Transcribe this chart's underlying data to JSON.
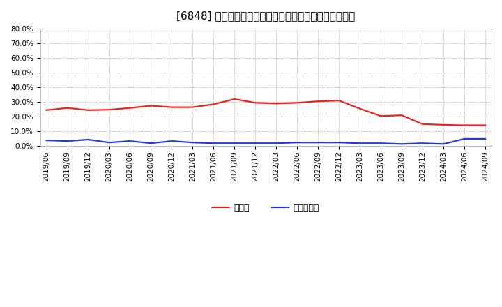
{
  "title": "[6848] 現顔金、有利子負債の総資産に対する比率の推移",
  "x_labels": [
    "2019/06",
    "2019/09",
    "2019/12",
    "2020/03",
    "2020/06",
    "2020/09",
    "2020/12",
    "2021/03",
    "2021/06",
    "2021/09",
    "2021/12",
    "2022/03",
    "2022/06",
    "2022/09",
    "2022/12",
    "2023/03",
    "2023/06",
    "2023/09",
    "2023/12",
    "2024/03",
    "2024/06",
    "2024/09"
  ],
  "cash_values": [
    24.5,
    26.0,
    24.5,
    24.8,
    26.0,
    27.5,
    26.5,
    26.5,
    28.5,
    32.0,
    29.5,
    29.0,
    29.5,
    30.5,
    31.0,
    25.5,
    20.5,
    21.0,
    15.0,
    14.5,
    14.2,
    14.2
  ],
  "debt_values": [
    4.0,
    3.5,
    4.5,
    2.5,
    3.5,
    2.0,
    3.5,
    2.5,
    2.0,
    2.0,
    2.0,
    2.0,
    2.5,
    2.5,
    2.5,
    2.0,
    2.0,
    1.5,
    2.0,
    1.5,
    5.0,
    5.0
  ],
  "cash_color": "#e82520",
  "debt_color": "#2040cc",
  "background_color": "#ffffff",
  "plot_bg_color": "#ffffff",
  "grid_color": "#999999",
  "ylim": [
    0.0,
    80.0
  ],
  "yticks": [
    0.0,
    10.0,
    20.0,
    30.0,
    40.0,
    50.0,
    60.0,
    70.0,
    80.0
  ],
  "legend_cash": "現顔金",
  "legend_debt": "有利子負債",
  "title_fontsize": 11,
  "tick_fontsize": 7.5,
  "legend_fontsize": 9,
  "line_width": 1.6
}
